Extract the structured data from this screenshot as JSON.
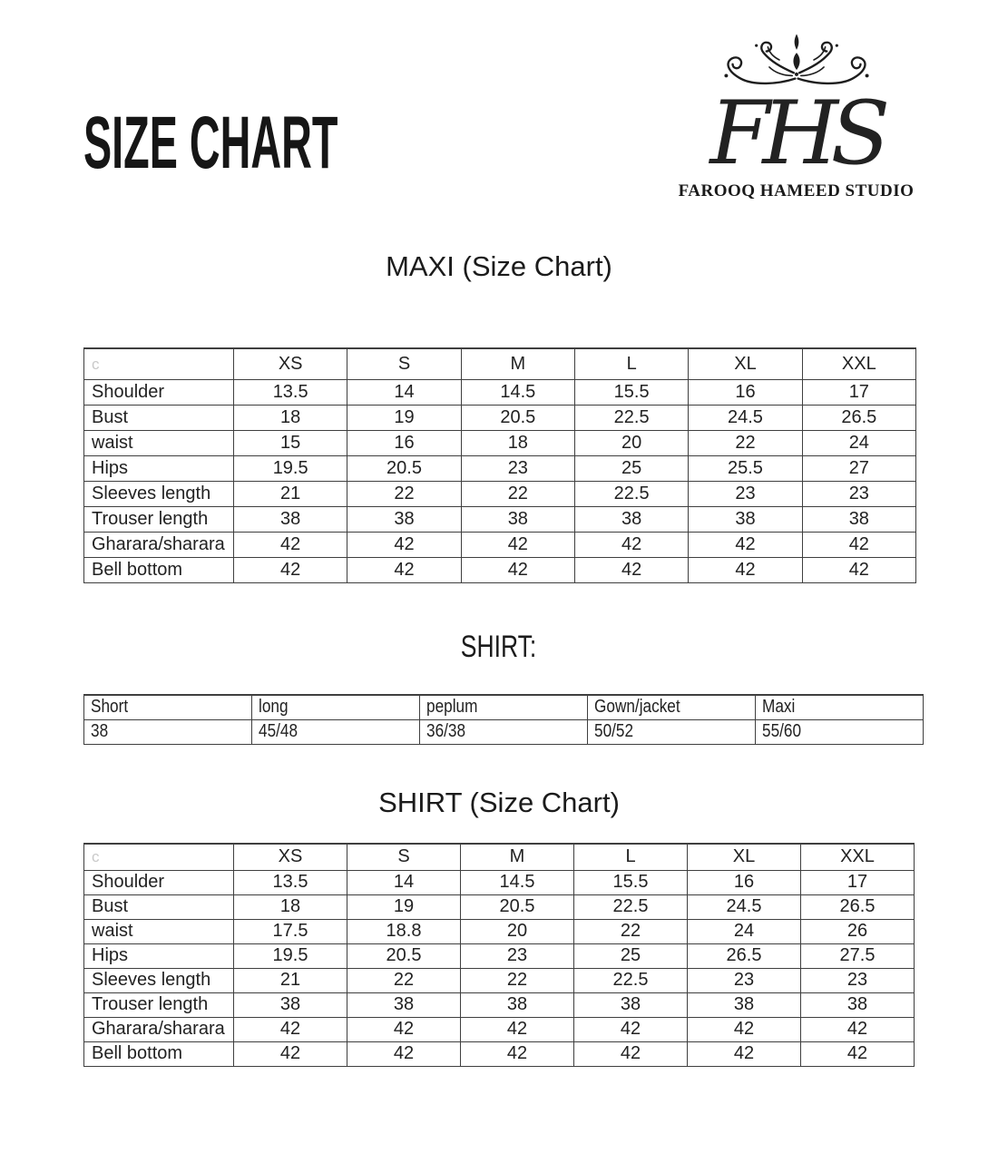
{
  "page": {
    "title": "SIZE CHART"
  },
  "logo": {
    "monogram": "FHS",
    "studio_name": "FAROOQ HAMEED STUDIO"
  },
  "sections": {
    "maxi": {
      "heading": "MAXI (Size Chart)"
    },
    "shirt_lengths": {
      "heading": "SHIRT:"
    },
    "shirt": {
      "heading": "SHIRT (Size Chart)"
    }
  },
  "maxi_table": {
    "header": [
      "c",
      "XS",
      "S",
      "M",
      "L",
      "XL",
      "XXL"
    ],
    "rows": [
      {
        "label": "Shoulder",
        "values": [
          "13.5",
          "14",
          "14.5",
          "15.5",
          "16",
          "17"
        ]
      },
      {
        "label": "Bust",
        "values": [
          "18",
          "19",
          "20.5",
          "22.5",
          "24.5",
          "26.5"
        ]
      },
      {
        "label": "waist",
        "values": [
          "15",
          "16",
          "18",
          "20",
          "22",
          "24"
        ]
      },
      {
        "label": "Hips",
        "values": [
          "19.5",
          "20.5",
          "23",
          "25",
          "25.5",
          "27"
        ]
      },
      {
        "label": "Sleeves length",
        "values": [
          "21",
          "22",
          "22",
          "22.5",
          "23",
          "23"
        ]
      },
      {
        "label": "Trouser length",
        "values": [
          "38",
          "38",
          "38",
          "38",
          "38",
          "38"
        ]
      },
      {
        "label": "Gharara/sharara",
        "values": [
          "42",
          "42",
          "42",
          "42",
          "42",
          "42"
        ]
      },
      {
        "label": "Bell bottom",
        "values": [
          "42",
          "42",
          "42",
          "42",
          "42",
          "42"
        ]
      }
    ]
  },
  "shirt_length_table": {
    "header": [
      "Short",
      "long",
      "peplum",
      "Gown/jacket",
      "Maxi"
    ],
    "rows": [
      {
        "values": [
          "38",
          "45/48",
          "36/38",
          "50/52",
          "55/60"
        ]
      }
    ]
  },
  "shirt_table": {
    "header": [
      "c",
      "XS",
      "S",
      "M",
      "L",
      "XL",
      "XXL"
    ],
    "rows": [
      {
        "label": "Shoulder",
        "values": [
          "13.5",
          "14",
          "14.5",
          "15.5",
          "16",
          "17"
        ]
      },
      {
        "label": "Bust",
        "values": [
          "18",
          "19",
          "20.5",
          "22.5",
          "24.5",
          "26.5"
        ]
      },
      {
        "label": "waist",
        "values": [
          "17.5",
          "18.8",
          "20",
          "22",
          "24",
          "26"
        ]
      },
      {
        "label": "Hips",
        "values": [
          "19.5",
          "20.5",
          "23",
          "25",
          "26.5",
          "27.5"
        ]
      },
      {
        "label": "Sleeves length",
        "values": [
          "21",
          "22",
          "22",
          "22.5",
          "23",
          "23"
        ]
      },
      {
        "label": "Trouser length",
        "values": [
          "38",
          "38",
          "38",
          "38",
          "38",
          "38"
        ]
      },
      {
        "label": "Gharara/sharara",
        "values": [
          "42",
          "42",
          "42",
          "42",
          "42",
          "42"
        ]
      },
      {
        "label": "Bell bottom",
        "values": [
          "42",
          "42",
          "42",
          "42",
          "42",
          "42"
        ]
      }
    ]
  },
  "colors": {
    "text": "#1f1f1f",
    "muted": "#c9c9c9",
    "border": "#3f3f3f"
  }
}
